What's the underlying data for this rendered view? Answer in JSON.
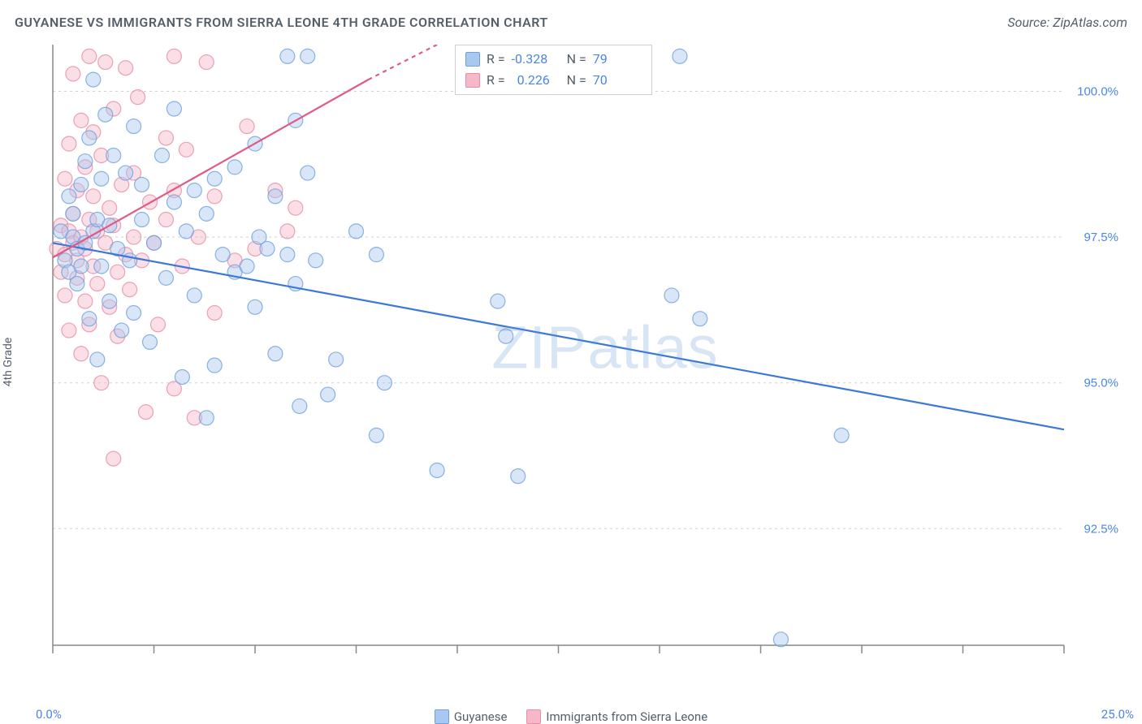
{
  "header": {
    "title": "GUYANESE VS IMMIGRANTS FROM SIERRA LEONE 4TH GRADE CORRELATION CHART",
    "source": "Source: ZipAtlas.com"
  },
  "watermark": "ZIPatlas",
  "chart": {
    "type": "scatter",
    "ylabel": "4th Grade",
    "xlim": [
      0,
      25
    ],
    "ylim": [
      90.5,
      100.8
    ],
    "x_tick_positions": [
      0,
      2.5,
      5,
      7.5,
      10,
      12.5,
      15,
      17.5,
      20,
      22.5,
      25
    ],
    "x_tick_labels_shown": {
      "min": "0.0%",
      "max": "25.0%"
    },
    "y_grid_positions": [
      92.5,
      95.0,
      97.5,
      100.0
    ],
    "y_tick_labels": [
      "92.5%",
      "95.0%",
      "97.5%",
      "100.0%"
    ],
    "axis_color": "#888888",
    "grid_color": "#d0d0d0",
    "background_color": "#ffffff",
    "axis_label_color": "#4a86e8",
    "label_fontsize": 14,
    "title_fontsize": 16,
    "marker_radius": 9,
    "marker_opacity": 0.45,
    "marker_stroke_width": 1.2,
    "series": [
      {
        "name": "Guyanese",
        "color_fill": "#a8c8f0",
        "color_stroke": "#6ea0dd",
        "line_color": "#3b78d8",
        "line_width": 2.2,
        "r_value": "-0.328",
        "n_value": "79",
        "trend": {
          "x1": 0,
          "y1": 97.4,
          "x2": 25,
          "y2": 94.2
        },
        "points": [
          [
            0.2,
            97.6
          ],
          [
            0.3,
            97.1
          ],
          [
            0.4,
            98.2
          ],
          [
            0.4,
            96.9
          ],
          [
            0.5,
            97.5
          ],
          [
            0.5,
            97.9
          ],
          [
            0.6,
            97.3
          ],
          [
            0.6,
            96.7
          ],
          [
            0.7,
            98.4
          ],
          [
            0.7,
            97.0
          ],
          [
            0.8,
            98.8
          ],
          [
            0.8,
            97.4
          ],
          [
            0.9,
            99.2
          ],
          [
            0.9,
            96.1
          ],
          [
            1.0,
            97.6
          ],
          [
            1.0,
            100.2
          ],
          [
            1.1,
            95.4
          ],
          [
            1.1,
            97.8
          ],
          [
            1.2,
            98.5
          ],
          [
            1.2,
            97.0
          ],
          [
            1.3,
            99.6
          ],
          [
            1.4,
            96.4
          ],
          [
            1.4,
            97.7
          ],
          [
            1.5,
            98.9
          ],
          [
            1.6,
            97.3
          ],
          [
            1.7,
            95.9
          ],
          [
            1.8,
            98.6
          ],
          [
            1.9,
            97.1
          ],
          [
            2.0,
            99.4
          ],
          [
            2.0,
            96.2
          ],
          [
            2.2,
            97.8
          ],
          [
            2.2,
            98.4
          ],
          [
            2.4,
            95.7
          ],
          [
            2.5,
            97.4
          ],
          [
            2.7,
            98.9
          ],
          [
            2.8,
            96.8
          ],
          [
            3.0,
            98.1
          ],
          [
            3.0,
            99.7
          ],
          [
            3.2,
            95.1
          ],
          [
            3.3,
            97.6
          ],
          [
            3.5,
            98.3
          ],
          [
            3.5,
            96.5
          ],
          [
            3.8,
            97.9
          ],
          [
            3.8,
            94.4
          ],
          [
            4.0,
            98.5
          ],
          [
            4.0,
            95.3
          ],
          [
            4.2,
            97.2
          ],
          [
            4.5,
            96.9
          ],
          [
            4.5,
            98.7
          ],
          [
            4.8,
            97.0
          ],
          [
            5.0,
            99.1
          ],
          [
            5.0,
            96.3
          ],
          [
            5.1,
            97.5
          ],
          [
            5.3,
            97.3
          ],
          [
            5.5,
            98.2
          ],
          [
            5.5,
            95.5
          ],
          [
            5.8,
            100.6
          ],
          [
            5.8,
            97.2
          ],
          [
            6.0,
            96.7
          ],
          [
            6.0,
            99.5
          ],
          [
            6.1,
            94.6
          ],
          [
            6.3,
            100.6
          ],
          [
            6.3,
            98.6
          ],
          [
            6.5,
            97.1
          ],
          [
            6.8,
            94.8
          ],
          [
            7.0,
            95.4
          ],
          [
            7.5,
            97.6
          ],
          [
            8.0,
            97.2
          ],
          [
            8.0,
            94.1
          ],
          [
            8.2,
            95.0
          ],
          [
            9.5,
            93.5
          ],
          [
            11.0,
            96.4
          ],
          [
            11.2,
            95.8
          ],
          [
            11.5,
            93.4
          ],
          [
            15.5,
            100.6
          ],
          [
            16.0,
            96.1
          ],
          [
            18.0,
            90.6
          ],
          [
            19.5,
            94.1
          ],
          [
            15.3,
            96.5
          ]
        ]
      },
      {
        "name": "Immigrants from Sierra Leone",
        "color_fill": "#f5b8c8",
        "color_stroke": "#e88ba5",
        "line_color": "#e05a87",
        "line_width": 2.2,
        "r_value": "0.226",
        "n_value": "70",
        "trend": {
          "x1": 0,
          "y1": 97.15,
          "x2": 7.8,
          "y2": 100.2
        },
        "trend_dashed_ext": {
          "x1": 7.8,
          "y1": 100.2,
          "x2": 9.5,
          "y2": 100.8
        },
        "points": [
          [
            0.1,
            97.3
          ],
          [
            0.2,
            97.7
          ],
          [
            0.2,
            96.9
          ],
          [
            0.3,
            97.2
          ],
          [
            0.3,
            98.5
          ],
          [
            0.3,
            96.5
          ],
          [
            0.4,
            97.6
          ],
          [
            0.4,
            99.1
          ],
          [
            0.4,
            95.9
          ],
          [
            0.5,
            97.4
          ],
          [
            0.5,
            97.9
          ],
          [
            0.5,
            100.3
          ],
          [
            0.6,
            98.3
          ],
          [
            0.6,
            96.8
          ],
          [
            0.6,
            97.1
          ],
          [
            0.7,
            99.5
          ],
          [
            0.7,
            97.5
          ],
          [
            0.7,
            95.5
          ],
          [
            0.8,
            98.7
          ],
          [
            0.8,
            96.4
          ],
          [
            0.8,
            97.3
          ],
          [
            0.9,
            97.8
          ],
          [
            0.9,
            100.6
          ],
          [
            0.9,
            96.0
          ],
          [
            1.0,
            98.2
          ],
          [
            1.0,
            97.0
          ],
          [
            1.0,
            99.3
          ],
          [
            1.1,
            96.7
          ],
          [
            1.1,
            97.6
          ],
          [
            1.2,
            98.9
          ],
          [
            1.2,
            95.0
          ],
          [
            1.3,
            97.4
          ],
          [
            1.3,
            100.5
          ],
          [
            1.4,
            96.3
          ],
          [
            1.4,
            98.0
          ],
          [
            1.5,
            97.7
          ],
          [
            1.5,
            99.7
          ],
          [
            1.6,
            96.9
          ],
          [
            1.6,
            95.8
          ],
          [
            1.7,
            98.4
          ],
          [
            1.8,
            97.2
          ],
          [
            1.8,
            100.4
          ],
          [
            1.9,
            96.6
          ],
          [
            2.0,
            98.6
          ],
          [
            2.0,
            97.5
          ],
          [
            2.1,
            99.9
          ],
          [
            2.2,
            97.1
          ],
          [
            2.3,
            94.5
          ],
          [
            2.4,
            98.1
          ],
          [
            2.5,
            97.4
          ],
          [
            2.6,
            96.0
          ],
          [
            2.8,
            99.2
          ],
          [
            2.8,
            97.8
          ],
          [
            3.0,
            100.6
          ],
          [
            3.0,
            94.9
          ],
          [
            3.0,
            98.3
          ],
          [
            3.2,
            97.0
          ],
          [
            3.3,
            99.0
          ],
          [
            3.5,
            94.4
          ],
          [
            3.6,
            97.5
          ],
          [
            3.8,
            100.5
          ],
          [
            4.0,
            98.2
          ],
          [
            4.0,
            96.2
          ],
          [
            4.5,
            97.1
          ],
          [
            4.8,
            99.4
          ],
          [
            5.0,
            97.3
          ],
          [
            5.5,
            98.3
          ],
          [
            5.8,
            97.6
          ],
          [
            6.0,
            98.0
          ],
          [
            1.5,
            93.7
          ]
        ]
      }
    ],
    "legend_bottom": [
      {
        "label": "Guyanese",
        "fill": "#a8c8f0",
        "stroke": "#6ea0dd"
      },
      {
        "label": "Immigrants from Sierra Leone",
        "fill": "#f5b8c8",
        "stroke": "#e88ba5"
      }
    ],
    "statsbox": {
      "r_label": "R =",
      "n_label": "N ="
    }
  }
}
